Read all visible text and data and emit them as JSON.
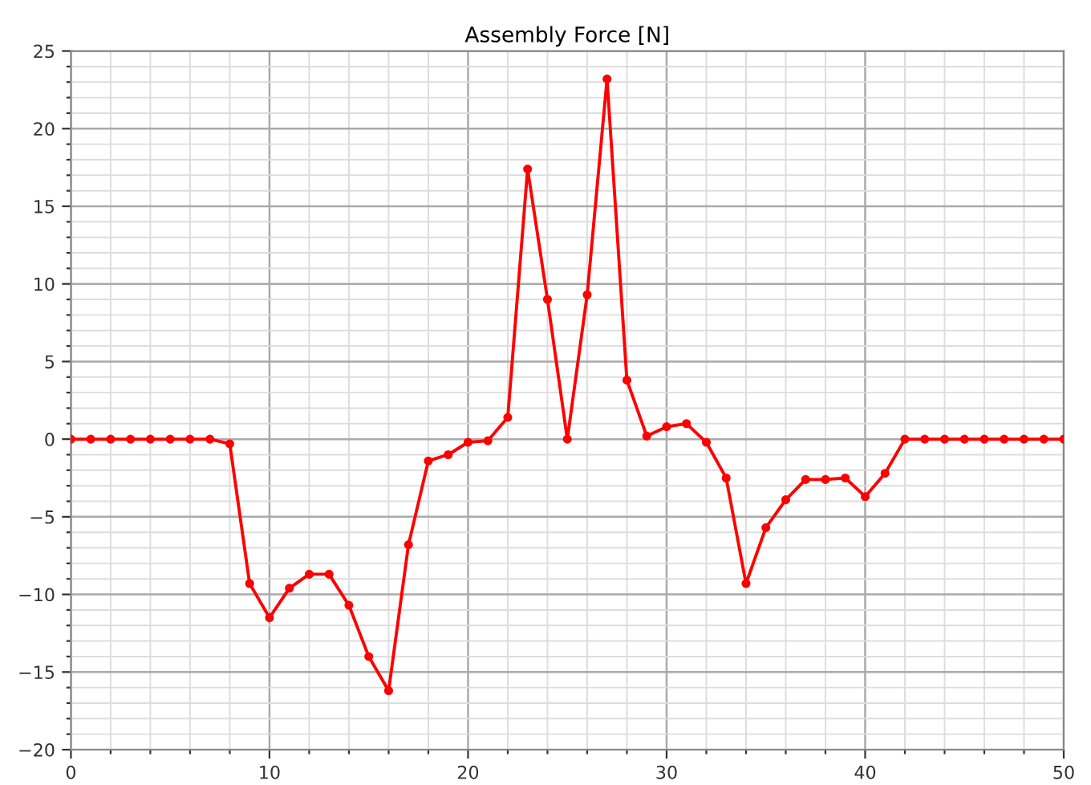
{
  "chart_data": {
    "type": "line",
    "title": "Assembly Force [N]",
    "x": [
      0,
      1,
      2,
      3,
      4,
      5,
      6,
      7,
      8,
      9,
      10,
      11,
      12,
      13,
      14,
      15,
      16,
      17,
      18,
      19,
      20,
      21,
      22,
      23,
      24,
      25,
      26,
      27,
      28,
      29,
      30,
      31,
      32,
      33,
      34,
      35,
      36,
      37,
      38,
      39,
      40,
      41,
      42,
      43,
      44,
      45,
      46,
      47,
      48,
      49,
      50
    ],
    "series": [
      {
        "color": "#ff0000",
        "values": [
          0,
          0,
          0,
          0,
          0,
          0,
          0,
          0,
          -0.3,
          -9.3,
          -11.5,
          -9.6,
          -8.7,
          -8.7,
          -10.7,
          -14,
          -16.2,
          -6.8,
          -1.4,
          -1,
          -0.2,
          -0.1,
          1.4,
          17.4,
          9,
          0,
          9.3,
          23.2,
          3.8,
          0.2,
          0.8,
          1,
          -0.2,
          -2.5,
          -9.3,
          -5.7,
          -3.9,
          -2.6,
          -2.6,
          -2.5,
          -3.7,
          -2.2,
          0,
          0,
          0,
          0,
          0,
          0,
          0,
          0,
          0
        ]
      }
    ],
    "xlim": [
      0,
      50
    ],
    "ylim": [
      -20,
      25
    ],
    "xticks": [
      0,
      {
        "value": 2,
        "label": null
      },
      {
        "value": 4,
        "label": null
      },
      {
        "value": 6,
        "label": null
      },
      {
        "value": 8,
        "label": null
      },
      10,
      {
        "value": 12,
        "label": null
      },
      {
        "value": 14,
        "label": null
      },
      {
        "value": 16,
        "label": null
      },
      {
        "value": 18,
        "label": null
      },
      20,
      {
        "value": 22,
        "label": null
      },
      {
        "value": 24,
        "label": null
      },
      {
        "value": 26,
        "label": null
      },
      {
        "value": 28,
        "label": null
      },
      30,
      {
        "value": 32,
        "label": null
      },
      {
        "value": 34,
        "label": null
      },
      {
        "value": 36,
        "label": null
      },
      {
        "value": 38,
        "label": null
      },
      40,
      {
        "value": 42,
        "label": null
      },
      {
        "value": 44,
        "label": null
      },
      {
        "value": 46,
        "label": null
      },
      {
        "value": 48,
        "label": null
      },
      50
    ],
    "yticks": [
      {
        "value": -20,
        "label": "−20"
      },
      {
        "value": -19,
        "label": null
      },
      {
        "value": -18,
        "label": null
      },
      {
        "value": -17,
        "label": null
      },
      {
        "value": -16,
        "label": null
      },
      {
        "value": -15,
        "label": "−15"
      },
      {
        "value": -14,
        "label": null
      },
      {
        "value": -13,
        "label": null
      },
      {
        "value": -12,
        "label": null
      },
      {
        "value": -11,
        "label": null
      },
      {
        "value": -10,
        "label": "−10"
      },
      {
        "value": -9,
        "label": null
      },
      {
        "value": -8,
        "label": null
      },
      {
        "value": -7,
        "label": null
      },
      {
        "value": -6,
        "label": null
      },
      {
        "value": -5,
        "label": "−5"
      },
      {
        "value": -4,
        "label": null
      },
      {
        "value": -3,
        "label": null
      },
      {
        "value": -2,
        "label": null
      },
      {
        "value": -1,
        "label": null
      },
      0,
      {
        "value": 1,
        "label": null
      },
      {
        "value": 2,
        "label": null
      },
      {
        "value": 3,
        "label": null
      },
      {
        "value": 4,
        "label": null
      },
      5,
      {
        "value": 6,
        "label": null
      },
      {
        "value": 7,
        "label": null
      },
      {
        "value": 8,
        "label": null
      },
      {
        "value": 9,
        "label": null
      },
      10,
      {
        "value": 11,
        "label": null
      },
      {
        "value": 12,
        "label": null
      },
      {
        "value": 13,
        "label": null
      },
      {
        "value": 14,
        "label": null
      },
      15,
      {
        "value": 16,
        "label": null
      },
      {
        "value": 17,
        "label": null
      },
      {
        "value": 18,
        "label": null
      },
      {
        "value": 19,
        "label": null
      },
      20,
      {
        "value": 21,
        "label": null
      },
      {
        "value": 22,
        "label": null
      },
      {
        "value": 23,
        "label": null
      },
      {
        "value": 24,
        "label": null
      },
      25
    ],
    "grid": true,
    "marker": "circle",
    "line_style": "solid"
  }
}
